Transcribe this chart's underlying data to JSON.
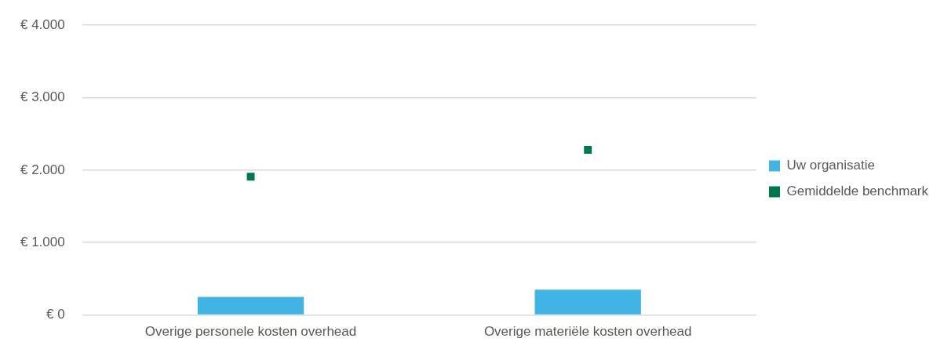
{
  "chart_data": {
    "type": "bar",
    "categories": [
      "Overige personele kosten overhead",
      "Overige materiële kosten overhead"
    ],
    "series": [
      {
        "name": "Uw organisatie",
        "color": "#41b4e6",
        "values": [
          250,
          350
        ]
      },
      {
        "name": "Gemiddelde benchmark",
        "type": "scatter",
        "marker": "square",
        "color": "#00794a",
        "values": [
          1910,
          2280
        ]
      }
    ],
    "ylim": [
      0,
      4000
    ],
    "yticks": [
      {
        "value": 0,
        "label": "€ 0"
      },
      {
        "value": 1000,
        "label": "€ 1.000"
      },
      {
        "value": 2000,
        "label": "€ 2.000"
      },
      {
        "value": 3000,
        "label": "€ 3.000"
      },
      {
        "value": 4000,
        "label": "€ 4.000"
      }
    ],
    "grid": "y",
    "legend": "right"
  }
}
